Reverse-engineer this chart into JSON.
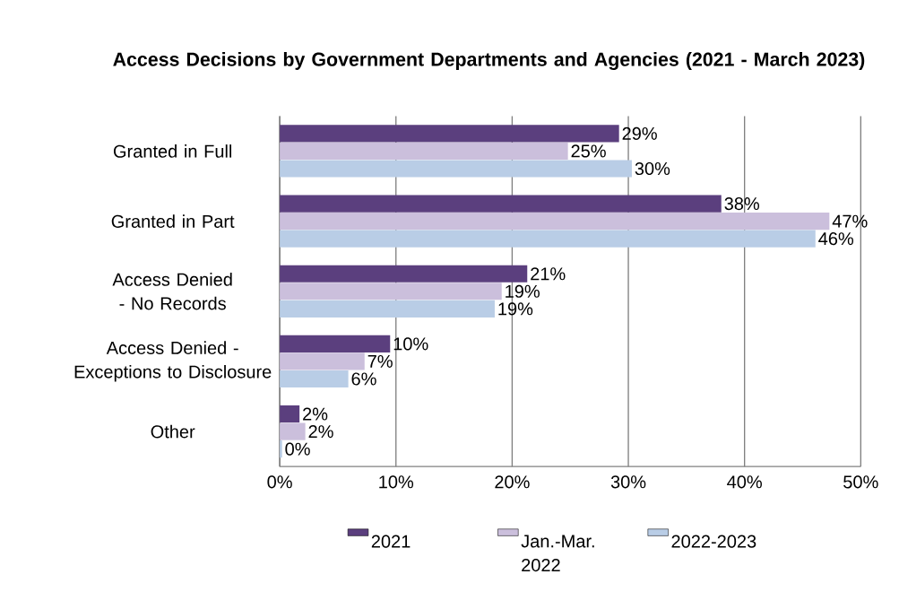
{
  "chart_data": {
    "type": "bar",
    "orientation": "horizontal",
    "title": "Access Decisions by Government Departments and Agencies (2021 - March 2023)",
    "categories": [
      "Granted in Full",
      "Granted in Part",
      "Access Denied - No Records",
      "Access Denied - Exceptions to Disclosure",
      "Other"
    ],
    "series": [
      {
        "name": "2021",
        "color": "#5b3f7e",
        "values": [
          29.2,
          38.0,
          21.3,
          9.5,
          1.7
        ],
        "value_labels": [
          "29%",
          "38%",
          "21%",
          "10%",
          "2%"
        ]
      },
      {
        "name": "Jan.-Mar. 2022",
        "color": "#cbbfdc",
        "values": [
          24.8,
          47.3,
          19.1,
          7.3,
          2.2
        ],
        "value_labels": [
          "25%",
          "47%",
          "19%",
          "7%",
          "2%"
        ]
      },
      {
        "name": "2022-2023",
        "color": "#b9cde6",
        "values": [
          30.3,
          46.1,
          18.5,
          5.9,
          0.2
        ],
        "value_labels": [
          "30%",
          "46%",
          "19%",
          "6%",
          "0%"
        ]
      }
    ],
    "xlim": [
      0,
      50
    ],
    "xticks": [
      {
        "value": 0,
        "label": "0%"
      },
      {
        "value": 10,
        "label": "10%"
      },
      {
        "value": 20,
        "label": "20%"
      },
      {
        "value": 30,
        "label": "30%"
      },
      {
        "value": 40,
        "label": "40%"
      },
      {
        "value": 50,
        "label": "50%"
      }
    ],
    "grid": "x",
    "legend": "bottom"
  }
}
